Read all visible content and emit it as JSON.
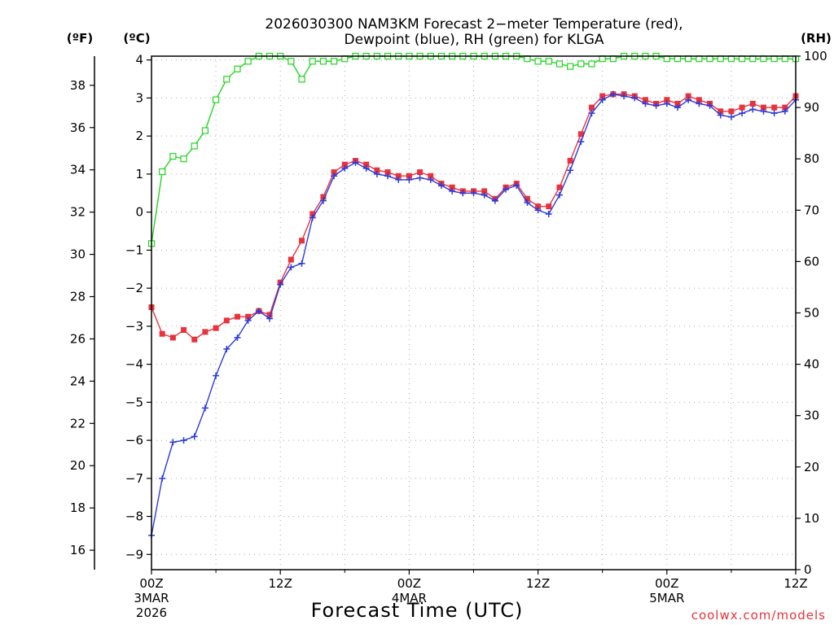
{
  "chart_data": {
    "type": "line",
    "title_line1": "2026030300 NAM3KM Forecast 2−meter Temperature (red),",
    "title_line2": "Dewpoint (blue), RH (green) for KLGA",
    "xlabel": "Forecast Time (UTC)",
    "credit": "coolwx.com/models",
    "units": {
      "fahrenheit": "(ºF)",
      "celsius": "(ºC)",
      "rh": "(RH)"
    },
    "x_range_hours": [
      0,
      60
    ],
    "celsius_axis": {
      "range": [
        -9.4,
        4.1
      ],
      "ticks": [
        "−9",
        "−8",
        "−7",
        "−6",
        "−5",
        "−4",
        "−3",
        "−2",
        "−1",
        "0",
        "1",
        "2",
        "3",
        "4"
      ],
      "tick_values": [
        -9,
        -8,
        -7,
        -6,
        -5,
        -4,
        -3,
        -2,
        -1,
        0,
        1,
        2,
        3,
        4
      ]
    },
    "fahrenheit_axis": {
      "ticks": [
        "16",
        "18",
        "20",
        "22",
        "24",
        "26",
        "28",
        "30",
        "32",
        "34",
        "36",
        "38"
      ],
      "tick_values": [
        16,
        18,
        20,
        22,
        24,
        26,
        28,
        30,
        32,
        34,
        36,
        38
      ]
    },
    "rh_axis": {
      "range": [
        0,
        100
      ],
      "ticks": [
        "0",
        "10",
        "20",
        "30",
        "40",
        "50",
        "60",
        "70",
        "80",
        "90",
        "100"
      ],
      "tick_values": [
        0,
        10,
        20,
        30,
        40,
        50,
        60,
        70,
        80,
        90,
        100
      ]
    },
    "x_ticks": [
      {
        "hour": 0,
        "label": "00Z",
        "sub1": "3MAR",
        "sub2": "2026"
      },
      {
        "hour": 12,
        "label": "12Z",
        "sub1": "",
        "sub2": ""
      },
      {
        "hour": 24,
        "label": "00Z",
        "sub1": "4MAR",
        "sub2": ""
      },
      {
        "hour": 36,
        "label": "12Z",
        "sub1": "",
        "sub2": ""
      },
      {
        "hour": 48,
        "label": "00Z",
        "sub1": "5MAR",
        "sub2": ""
      },
      {
        "hour": 60,
        "label": "12Z",
        "sub1": "",
        "sub2": ""
      }
    ],
    "colors": {
      "temperature": "#e8323c",
      "dewpoint": "#2b3bd9",
      "rh": "#22d422",
      "grid": "#a8a8a8",
      "credit": "#e8323c"
    },
    "series": [
      {
        "name": "Temperature",
        "unit": "C",
        "marker": "filled-square",
        "values": [
          -2.5,
          -3.2,
          -3.3,
          -3.1,
          -3.35,
          -3.15,
          -3.05,
          -2.85,
          -2.75,
          -2.75,
          -2.6,
          -2.7,
          -1.85,
          -1.25,
          -0.75,
          -0.05,
          0.4,
          1.05,
          1.25,
          1.35,
          1.25,
          1.1,
          1.05,
          0.95,
          0.95,
          1.05,
          0.95,
          0.75,
          0.65,
          0.55,
          0.55,
          0.55,
          0.35,
          0.65,
          0.75,
          0.35,
          0.15,
          0.15,
          0.65,
          1.35,
          2.05,
          2.75,
          3.05,
          3.1,
          3.1,
          3.05,
          2.95,
          2.85,
          2.95,
          2.85,
          3.05,
          2.95,
          2.85,
          2.65,
          2.65,
          2.75,
          2.85,
          2.75,
          2.75,
          2.75,
          3.05
        ]
      },
      {
        "name": "Dewpoint",
        "unit": "C",
        "marker": "plus",
        "values": [
          -8.5,
          -7.0,
          -6.05,
          -6.0,
          -5.9,
          -5.15,
          -4.3,
          -3.6,
          -3.3,
          -2.85,
          -2.6,
          -2.8,
          -1.9,
          -1.45,
          -1.35,
          -0.15,
          0.3,
          0.95,
          1.15,
          1.3,
          1.15,
          1.0,
          0.95,
          0.85,
          0.85,
          0.9,
          0.85,
          0.7,
          0.55,
          0.5,
          0.5,
          0.45,
          0.3,
          0.6,
          0.7,
          0.25,
          0.05,
          -0.05,
          0.45,
          1.1,
          1.85,
          2.6,
          2.95,
          3.1,
          3.05,
          3.0,
          2.85,
          2.8,
          2.85,
          2.75,
          2.95,
          2.85,
          2.8,
          2.55,
          2.5,
          2.6,
          2.7,
          2.65,
          2.6,
          2.65,
          2.95
        ]
      },
      {
        "name": "RH",
        "unit": "%",
        "marker": "open-square",
        "values": [
          63.5,
          77.5,
          80.5,
          80.0,
          82.5,
          85.5,
          91.5,
          95.5,
          97.5,
          99.0,
          100,
          100,
          100,
          99.0,
          95.5,
          99.0,
          99.0,
          99.0,
          99.5,
          100,
          100,
          100,
          100,
          100,
          100,
          100,
          100,
          100,
          100,
          100,
          100,
          100,
          100,
          100,
          100,
          99.5,
          99.0,
          99.0,
          98.5,
          98.0,
          98.5,
          98.5,
          99.5,
          99.5,
          100,
          100,
          100,
          100,
          99.5,
          99.5,
          99.5,
          99.5,
          99.5,
          99.5,
          99.5,
          99.5,
          99.5,
          99.5,
          99.5,
          99.5,
          99.5
        ]
      }
    ]
  }
}
